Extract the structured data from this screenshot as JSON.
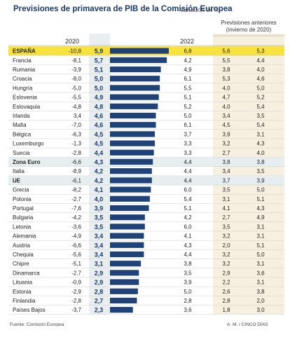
{
  "header": {
    "title": "Previsiones de primavera de PIB de la Comisión Europea",
    "subtitle": "Variación en %",
    "previous_label_line1": "Previsiones anteriores",
    "previous_label_line2": "(invierno de 2020)",
    "col_2020": "2020",
    "col_2021": "2021",
    "col_2022": "2022",
    "col_prev_2021": "2021",
    "col_prev_2022": "2022"
  },
  "footer": {
    "source": "Fuente: Comisión Europea",
    "credit": "A. M. / CINCO DÍAS"
  },
  "colors": {
    "bar": "#1f4279",
    "highlight_spain": "#f7e23e",
    "highlight_aggregate": "#e6eef0",
    "prev_band": "#f7efdf",
    "col_2021_band": "#e9eff1",
    "row_line": "#cfcfcf"
  },
  "chart_data": {
    "type": "table",
    "columns": [
      "2020",
      "2021",
      "2022",
      "Previsiones anteriores 2021",
      "Previsiones anteriores 2022"
    ],
    "bar_series": "2021",
    "rows": [
      {
        "country": "ESPAÑA",
        "v2020": "-10,8",
        "v2021": 5.9,
        "v2021_label": "5,9",
        "v2022": "6,8",
        "prev2021": "5,6",
        "prev2022": "5,3",
        "highlight": "spain"
      },
      {
        "country": "Francia",
        "v2020": "-8,1",
        "v2021": 5.7,
        "v2021_label": "5,7",
        "v2022": "4,2",
        "prev2021": "5,5",
        "prev2022": "4,4"
      },
      {
        "country": "Rumania",
        "v2020": "-3,9",
        "v2021": 5.1,
        "v2021_label": "5,1",
        "v2022": "4,9",
        "prev2021": "3,8",
        "prev2022": "4,0"
      },
      {
        "country": "Croacia",
        "v2020": "-8,0",
        "v2021": 5.0,
        "v2021_label": "5,0",
        "v2022": "6,1",
        "prev2021": "5,3",
        "prev2022": "4,6"
      },
      {
        "country": "Hungría",
        "v2020": "-5,0",
        "v2021": 5.0,
        "v2021_label": "5,0",
        "v2022": "5,5",
        "prev2021": "4,0",
        "prev2022": "5,0"
      },
      {
        "country": "Eslovenia",
        "v2020": "-5,5",
        "v2021": 4.9,
        "v2021_label": "4,9",
        "v2022": "5,1",
        "prev2021": "4,7",
        "prev2022": "5,2"
      },
      {
        "country": "Eslovaquia",
        "v2020": "-4,8",
        "v2021": 4.8,
        "v2021_label": "4,8",
        "v2022": "5,2",
        "prev2021": "4,0",
        "prev2022": "5,4"
      },
      {
        "country": "Irlanda",
        "v2020": "3,4",
        "v2021": 4.6,
        "v2021_label": "4,6",
        "v2022": "5,0",
        "prev2021": "3,4",
        "prev2022": "3,5"
      },
      {
        "country": "Malta",
        "v2020": "-7,0",
        "v2021": 4.6,
        "v2021_label": "4,6",
        "v2022": "6,1",
        "prev2021": "4,5",
        "prev2022": "5,4"
      },
      {
        "country": "Bélgica",
        "v2020": "-6,3",
        "v2021": 4.5,
        "v2021_label": "4,5",
        "v2022": "3,7",
        "prev2021": "3,9",
        "prev2022": "3,1"
      },
      {
        "country": "Luxemburgo",
        "v2020": "-1,3",
        "v2021": 4.5,
        "v2021_label": "4,5",
        "v2022": "3,3",
        "prev2021": "3,2",
        "prev2022": "4,3"
      },
      {
        "country": "Suecia",
        "v2020": "-2,8",
        "v2021": 4.4,
        "v2021_label": "4,4",
        "v2022": "3,3",
        "prev2021": "2,7",
        "prev2022": "4,0"
      },
      {
        "country": "Zona Euro",
        "v2020": "-6,6",
        "v2021": 4.3,
        "v2021_label": "4,3",
        "v2022": "4,4",
        "prev2021": "3,8",
        "prev2022": "3,8",
        "highlight": "aggregate"
      },
      {
        "country": "Italia",
        "v2020": "-8,9",
        "v2021": 4.2,
        "v2021_label": "4,2",
        "v2022": "4,4",
        "prev2021": "3,4",
        "prev2022": "3,5"
      },
      {
        "country": "UE",
        "v2020": "-6,1",
        "v2021": 4.2,
        "v2021_label": "4,2",
        "v2022": "4,4",
        "prev2021": "3,7",
        "prev2022": "3,9",
        "highlight": "aggregate"
      },
      {
        "country": "Grecia",
        "v2020": "-8,2",
        "v2021": 4.1,
        "v2021_label": "4,1",
        "v2022": "6,0",
        "prev2021": "3,5",
        "prev2022": "5,0"
      },
      {
        "country": "Polonia",
        "v2020": "-2,7",
        "v2021": 4.0,
        "v2021_label": "4,0",
        "v2022": "5,4",
        "prev2021": "3,1",
        "prev2022": "5,1"
      },
      {
        "country": "Portugal",
        "v2020": "-7,6",
        "v2021": 3.9,
        "v2021_label": "3,9",
        "v2022": "5,1",
        "prev2021": "4,1",
        "prev2022": "4,3"
      },
      {
        "country": "Bulgaria",
        "v2020": "-4,2",
        "v2021": 3.5,
        "v2021_label": "3,5",
        "v2022": "4,2",
        "prev2021": "2,7",
        "prev2022": "4,9"
      },
      {
        "country": "Letonia",
        "v2020": "-3,6",
        "v2021": 3.5,
        "v2021_label": "3,5",
        "v2022": "6,0",
        "prev2021": "3,5",
        "prev2022": "3,1"
      },
      {
        "country": "Alemania",
        "v2020": "-4,9",
        "v2021": 3.4,
        "v2021_label": "3,4",
        "v2022": "4,1",
        "prev2021": "3,2",
        "prev2022": "3,1"
      },
      {
        "country": "Austria",
        "v2020": "-6,6",
        "v2021": 3.4,
        "v2021_label": "3,4",
        "v2022": "4,3",
        "prev2021": "2,0",
        "prev2022": "5,1"
      },
      {
        "country": "Chequia",
        "v2020": "-5,6",
        "v2021": 3.4,
        "v2021_label": "3,4",
        "v2022": "4,4",
        "prev2021": "3,2",
        "prev2022": "5,0"
      },
      {
        "country": "Chipre",
        "v2020": "-5,1",
        "v2021": 3.1,
        "v2021_label": "3,1",
        "v2022": "3,8",
        "prev2021": "3,2",
        "prev2022": "3,1"
      },
      {
        "country": "Dinamarca",
        "v2020": "-2,7",
        "v2021": 2.9,
        "v2021_label": "2,9",
        "v2022": "3,5",
        "prev2021": "2,9",
        "prev2022": "3,6"
      },
      {
        "country": "Lituania",
        "v2020": "-0,9",
        "v2021": 2.9,
        "v2021_label": "2,9",
        "v2022": "3,9",
        "prev2021": "2,2",
        "prev2022": "3,1"
      },
      {
        "country": "Estonia",
        "v2020": "-2,9",
        "v2021": 2.8,
        "v2021_label": "2,8",
        "v2022": "5,0",
        "prev2021": "2,6",
        "prev2022": "3,8"
      },
      {
        "country": "Finlandia",
        "v2020": "-2,8",
        "v2021": 2.7,
        "v2021_label": "2,7",
        "v2022": "2,8",
        "prev2021": "2,8",
        "prev2022": "2,0"
      },
      {
        "country": "Países Bajos",
        "v2020": "-3,7",
        "v2021": 2.3,
        "v2021_label": "2,3",
        "v2022": "3,6",
        "prev2021": "1,8",
        "prev2022": "3,0"
      }
    ]
  }
}
